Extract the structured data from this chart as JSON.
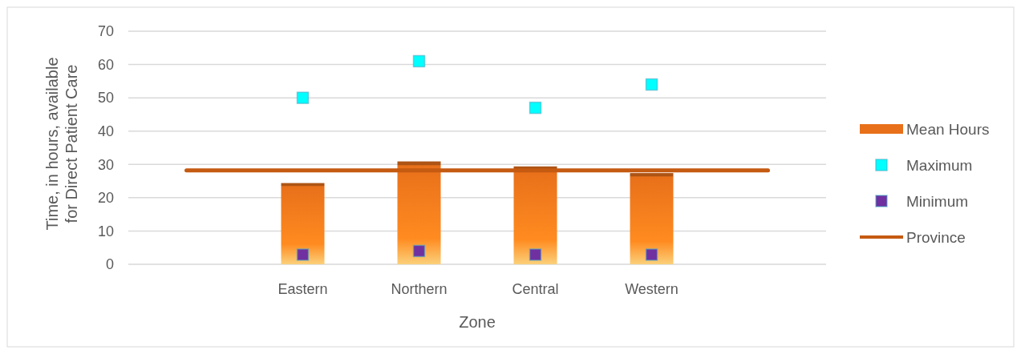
{
  "chart_data": {
    "type": "bar",
    "xlabel": "Zone",
    "ylabel": "Time, in hours, available for Direct Patient Care",
    "categories": [
      null,
      "Eastern",
      "Northern",
      "Central",
      "Western",
      null
    ],
    "series": [
      {
        "name": "Mean Hours",
        "color": "#e8701a",
        "values": [
          null,
          24.4,
          30.9,
          29.4,
          27.4,
          null
        ]
      },
      {
        "name": "Maximum",
        "type": "scatter",
        "marker": "square",
        "color": "#00ffff",
        "values": [
          null,
          50,
          61,
          47,
          54,
          null
        ]
      },
      {
        "name": "Minimum",
        "type": "scatter",
        "marker": "square",
        "color": "#7030a0",
        "values": [
          null,
          2.9,
          4,
          2.9,
          2.9,
          null
        ]
      },
      {
        "name": "Province",
        "type": "line",
        "color": "#c55a11",
        "values": [
          28.2,
          28.2,
          28.2,
          28.2,
          28.2,
          28.2
        ]
      }
    ],
    "ylim": [
      0,
      70
    ],
    "yticks": [
      0,
      10,
      20,
      30,
      40,
      50,
      60,
      70
    ],
    "grid": "y",
    "legend": "right"
  }
}
